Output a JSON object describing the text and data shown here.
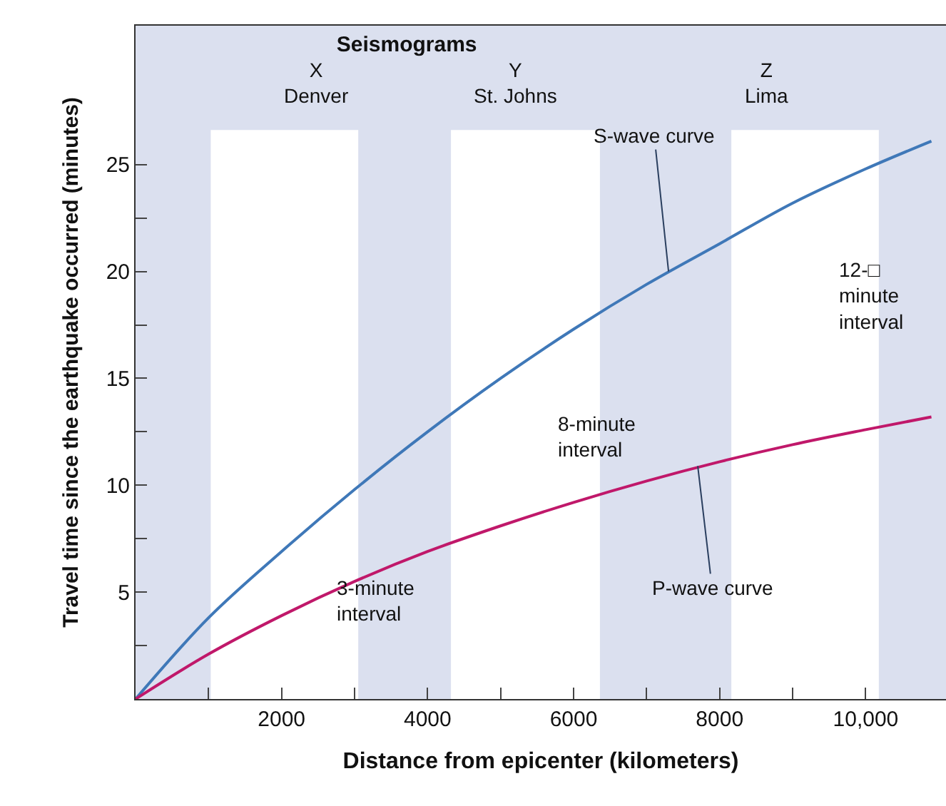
{
  "chart_data": {
    "type": "line",
    "title": "Seismograms",
    "xlabel": "Distance from epicenter (kilometers)",
    "ylabel": "Travel time since the earthquake occurred (minutes)",
    "x": [
      0,
      1000,
      2000,
      3000,
      4000,
      5000,
      6000,
      7000,
      8000,
      9000,
      10000,
      10900
    ],
    "series": [
      {
        "color": "#3f78b8",
        "values": [
          0,
          3.8,
          6.9,
          9.8,
          12.5,
          15.0,
          17.3,
          19.4,
          21.3,
          23.2,
          24.8,
          26.1
        ]
      },
      {
        "color": "#c0186a",
        "values": [
          0,
          2.1,
          3.9,
          5.5,
          6.9,
          8.1,
          9.2,
          10.2,
          11.1,
          11.9,
          12.6,
          13.2
        ]
      }
    ],
    "xlim": [
      0,
      11100
    ],
    "ylim": [
      0,
      31.5
    ],
    "xticks": [
      {
        "value": 1000,
        "label": null
      },
      {
        "value": 2000,
        "label": "2000"
      },
      {
        "value": 3000,
        "label": null
      },
      {
        "value": 4000,
        "label": "4000"
      },
      {
        "value": 5000,
        "label": null
      },
      {
        "value": 6000,
        "label": "6000"
      },
      {
        "value": 7000,
        "label": null
      },
      {
        "value": 8000,
        "label": "8000"
      },
      {
        "value": 9000,
        "label": null
      },
      {
        "value": 10000,
        "label": "10,000"
      }
    ],
    "yticks": [
      {
        "value": 2.5,
        "label": null
      },
      5,
      {
        "value": 7.5,
        "label": null
      },
      10,
      {
        "value": 12.5,
        "label": null
      },
      15,
      {
        "value": 17.5,
        "label": null
      },
      20,
      {
        "value": 22.5,
        "label": null
      },
      25
    ],
    "bands": [
      {
        "axis": "x",
        "from": 1030,
        "to": 3050,
        "color": "#ffffff"
      },
      {
        "axis": "x",
        "from": 4320,
        "to": 6360,
        "color": "#ffffff"
      },
      {
        "axis": "x",
        "from": 8160,
        "to": 10180,
        "color": "#ffffff"
      }
    ],
    "annotations": [
      "X\nDenver",
      "Y\nSt. Johns",
      "Z\nLima",
      {
        "text": "S-wave curve",
        "x": 7300,
        "y": 20.0
      },
      {
        "text": "P-wave curve",
        "x": 7700,
        "y": 10.9
      },
      "3-minute\ninterval",
      "8-minute\ninterval",
      "12-□\nminute\ninterval"
    ],
    "grid": false,
    "legend": false
  }
}
